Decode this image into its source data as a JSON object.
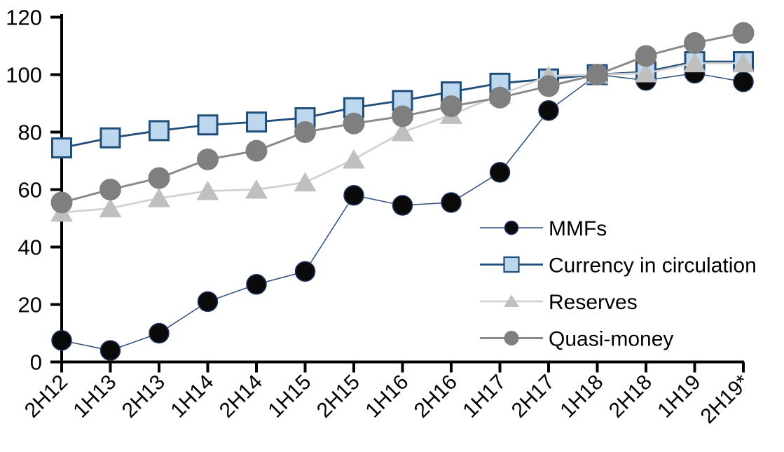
{
  "chart_data": {
    "type": "line",
    "title": "",
    "xlabel": "",
    "ylabel": "",
    "ylim": [
      0,
      120
    ],
    "yticks": [
      120,
      100,
      80,
      60,
      40,
      20,
      0
    ],
    "grid": false,
    "legend_position": "inside-right",
    "categories": [
      "2H12",
      "1H13",
      "2H13",
      "1H14",
      "2H14",
      "1H15",
      "2H15",
      "1H16",
      "2H16",
      "1H17",
      "2H17",
      "1H18",
      "2H18",
      "1H19",
      "2H19*"
    ],
    "series": [
      {
        "name": "MMFs",
        "marker": "circle",
        "marker_fill": "#0a0a0a",
        "marker_stroke": "#1f3864",
        "marker_stroke_width": 1.5,
        "marker_size": 14,
        "legend_marker_size": 9.5,
        "line_color": "#2e4d7b",
        "line_width": 1.5,
        "values": [
          7.5,
          4,
          10,
          21,
          27,
          31.5,
          58,
          54.5,
          55.5,
          66,
          87.5,
          100,
          98,
          100.5,
          97.5
        ]
      },
      {
        "name": "Currency in circulation",
        "marker": "square",
        "marker_fill": "#bdd7ee",
        "marker_stroke": "#1f4e79",
        "marker_stroke_width": 3,
        "marker_size": 13.5,
        "legend_marker_size": 10.5,
        "line_color": "#1f4e79",
        "line_width": 2.8,
        "values": [
          74.5,
          78,
          80.5,
          82.5,
          83.5,
          85,
          88.5,
          91,
          94,
          97,
          98.5,
          100,
          101,
          104.5,
          104.5
        ]
      },
      {
        "name": "Reserves",
        "marker": "triangle",
        "marker_fill": "#bfbfbf",
        "marker_stroke": "#bfbfbf",
        "marker_stroke_width": 0,
        "marker_size": 15.5,
        "legend_marker_size": 10.5,
        "line_color": "#d2d2d2",
        "line_width": 2.8,
        "values": [
          52,
          53.5,
          57,
          59.5,
          60,
          62.5,
          70.5,
          80,
          86,
          93,
          99.5,
          100,
          100.5,
          104,
          104
        ]
      },
      {
        "name": "Quasi-money",
        "marker": "circle",
        "marker_fill": "#7f7f7f",
        "marker_stroke": "#7f7f7f",
        "marker_stroke_width": 0,
        "marker_size": 15.5,
        "legend_marker_size": 10.5,
        "line_color": "#8a8a8a",
        "line_width": 3,
        "values": [
          55.5,
          60,
          64,
          70.5,
          73.5,
          80,
          83,
          85.5,
          89,
          92,
          96,
          100,
          106.5,
          111,
          114.5
        ]
      }
    ],
    "axis_color": "#000000",
    "background_color": "#ffffff"
  },
  "legend": {
    "items": [
      "MMFs",
      "Currency in circulation",
      "Reserves",
      "Quasi-money"
    ]
  }
}
